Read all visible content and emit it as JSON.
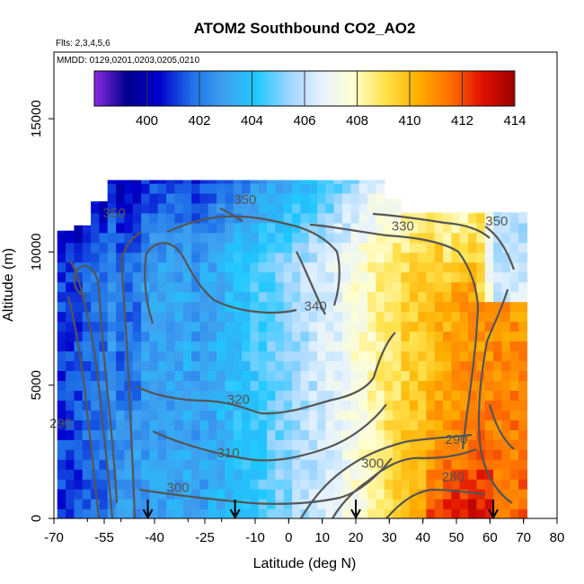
{
  "chart_data": {
    "type": "heatmap",
    "title": "ATOM2 Southbound CO2_AO2",
    "subtitle_flights": "Flts: 2,3,4,5,6",
    "subtitle_dates": "MMDD: 0129,0201,0203,0205,0210",
    "xlabel": "Latitude (deg N)",
    "ylabel": "Altitude (m)",
    "xlim": [
      -70,
      80
    ],
    "ylim": [
      0,
      17500
    ],
    "x_ticks": [
      "-70",
      "-55",
      "-40",
      "-25",
      "-10",
      "0",
      "10",
      "20",
      "30",
      "40",
      "50",
      "60",
      "70",
      "80"
    ],
    "y_ticks": [
      "0",
      "5000",
      "10000",
      "15000"
    ],
    "colorbar": {
      "min": 398,
      "max": 414,
      "tick_labels": [
        "400",
        "402",
        "404",
        "406",
        "408",
        "410",
        "412",
        "414"
      ],
      "colors": [
        "#8a2be2",
        "#00008b",
        "#0000cd",
        "#1e6fe8",
        "#3fa0f0",
        "#1ec8ff",
        "#9ad4ff",
        "#e6f2ff",
        "#ffffd0",
        "#ffe14a",
        "#ffb000",
        "#ff7000",
        "#e01000",
        "#9b0000"
      ]
    },
    "profile_markers_lat": [
      -42,
      -16,
      20,
      61
    ],
    "contour_labels": [
      {
        "text": "350",
        "lat": -52,
        "alt": 11300
      },
      {
        "text": "350",
        "lat": -13,
        "alt": 11800
      },
      {
        "text": "330",
        "lat": 34,
        "alt": 10800
      },
      {
        "text": "350",
        "lat": 62,
        "alt": 11000
      },
      {
        "text": "340",
        "lat": 8,
        "alt": 7800
      },
      {
        "text": "320",
        "lat": -15,
        "alt": 4300
      },
      {
        "text": "310",
        "lat": -18,
        "alt": 2300
      },
      {
        "text": "300",
        "lat": -33,
        "alt": 1000
      },
      {
        "text": "300",
        "lat": 25,
        "alt": 1900
      },
      {
        "text": "290",
        "lat": 50,
        "alt": 2800
      },
      {
        "text": "280",
        "lat": 49,
        "alt": 1400
      },
      {
        "text": "290",
        "lat": -68,
        "alt": 3400
      }
    ]
  }
}
